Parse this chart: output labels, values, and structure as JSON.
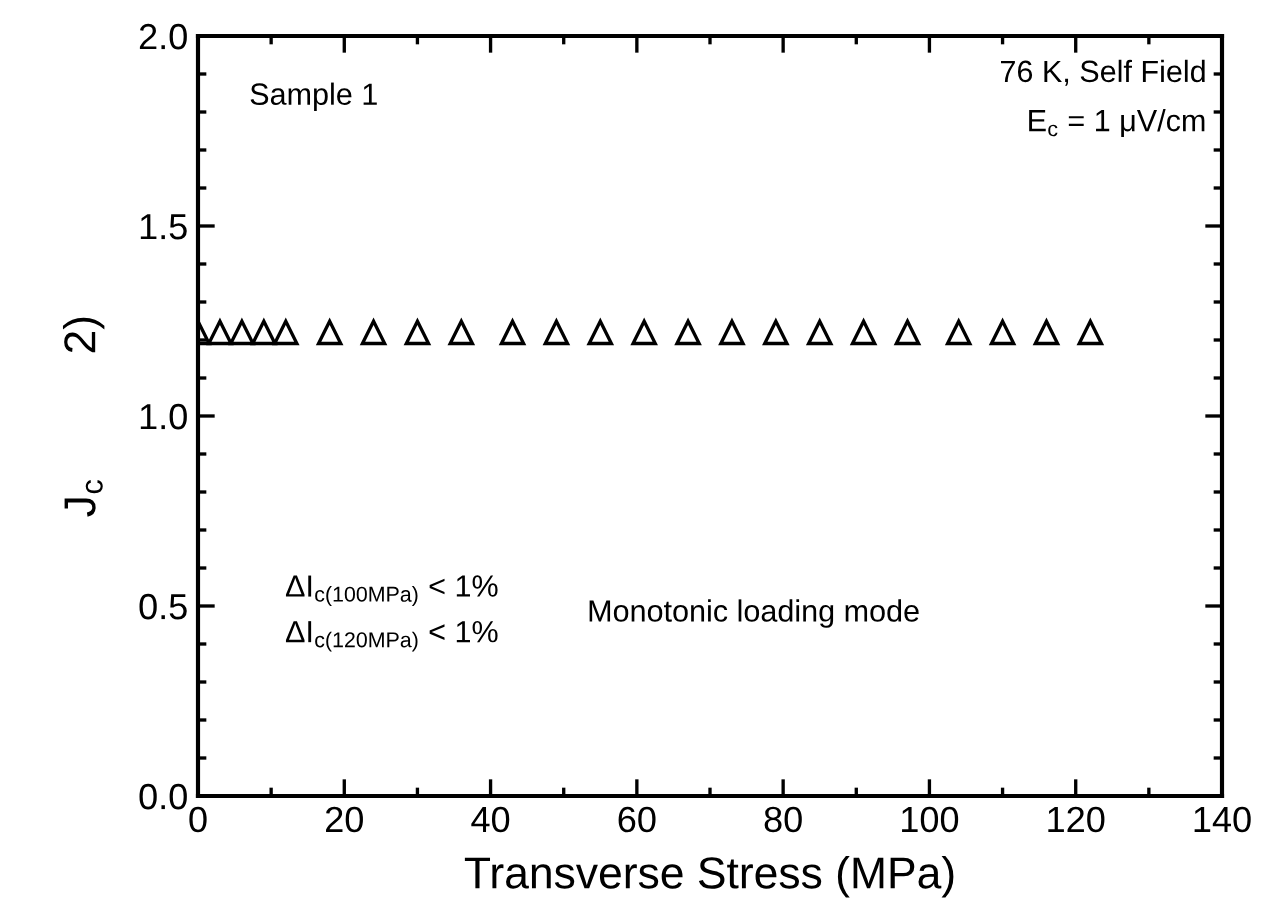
{
  "chart_data": {
    "type": "scatter",
    "xlabel": "Transverse Stress (MPa)",
    "ylabel": "J$_{c}$          2)",
    "x": [
      0,
      3,
      6,
      9,
      12,
      18,
      24,
      30,
      36,
      43,
      49,
      55,
      61,
      67,
      73,
      79,
      85,
      91,
      97,
      104,
      110,
      116,
      122
    ],
    "series": [
      {
        "color": "#000000",
        "values": [
          1.22,
          1.22,
          1.22,
          1.22,
          1.22,
          1.22,
          1.22,
          1.22,
          1.22,
          1.22,
          1.22,
          1.22,
          1.22,
          1.22,
          1.22,
          1.22,
          1.22,
          1.22,
          1.22,
          1.22,
          1.22,
          1.22,
          1.22
        ]
      }
    ],
    "marker": "triangle",
    "xlim": [
      0,
      140
    ],
    "xticks": [
      0,
      20,
      40,
      60,
      80,
      100,
      120,
      140
    ],
    "ylim": [
      0,
      2.0
    ],
    "yticks": [
      {
        "value": 0,
        "label": "0.0"
      },
      {
        "value": 0.5,
        "label": "0.5"
      },
      {
        "value": 1.0,
        "label": "1.0"
      },
      {
        "value": 1.5,
        "label": "1.5"
      },
      {
        "value": 2.0,
        "label": "2.0"
      }
    ],
    "grid": false,
    "legend": false,
    "annotations": [
      "Sample 1",
      "76 K, Self Field",
      "E$_{c}$ = 1 μV/cm",
      "ΔI$_{c(100MPa)}$ < 1%",
      "ΔI$_{c(120MPa)}$ < 1%",
      "Monotonic loading mode"
    ]
  }
}
